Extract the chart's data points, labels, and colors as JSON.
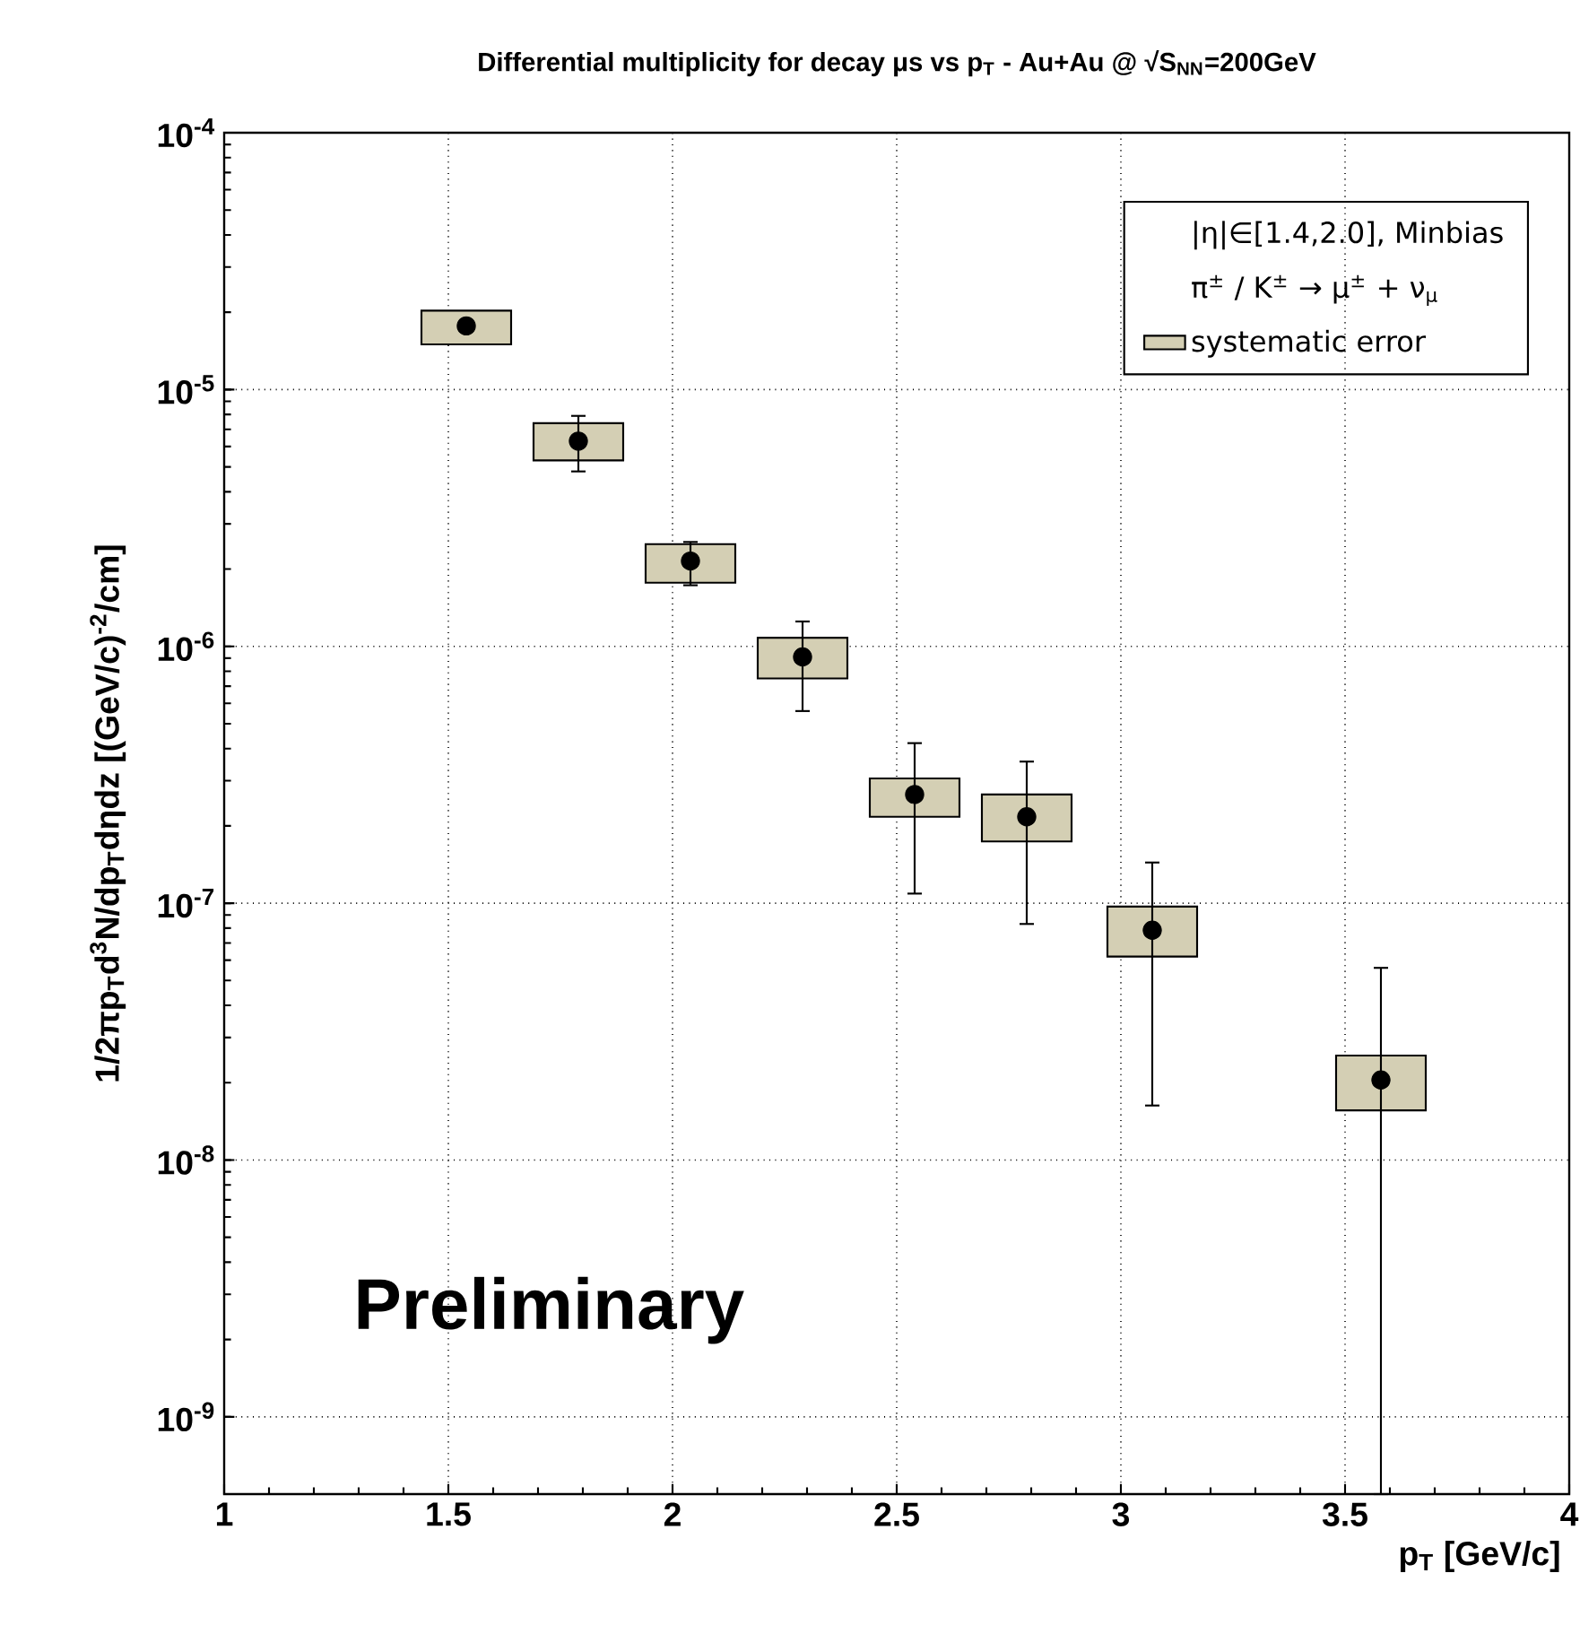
{
  "chart_data": {
    "type": "scatter",
    "title": "Differential multiplicity for decay μs vs p$_{T}$ - Au+Au @ √S$_{NN}$=200GeV",
    "xlabel": "p$_{T}$ [GeV/c]",
    "ylabel": "1/2πp$_{T}$d$^{3}$N/dp$_{T}$dηdz [(GeV/c)$^{-2}$/cm]",
    "log": "y",
    "xlim": [
      1,
      4
    ],
    "ylim": [
      5e-10,
      0.0001
    ],
    "xticks": [
      1,
      1.5,
      2,
      2.5,
      3,
      3.5,
      4
    ],
    "yticks": [
      {
        "value": 1e-09,
        "label": "10$^{-9}$"
      },
      {
        "value": 1e-08,
        "label": "10$^{-8}$"
      },
      {
        "value": 1e-07,
        "label": "10$^{-7}$"
      },
      {
        "value": 1e-06,
        "label": "10$^{-6}$"
      },
      {
        "value": 1e-05,
        "label": "10$^{-5}$"
      },
      {
        "value": 0.0001,
        "label": "10$^{-4}$"
      }
    ],
    "grid": true,
    "legend": "top right",
    "annotations": [
      "|η|∈[1.4,2.0], Minbias",
      "π$^{±}$ / K$^{±}$ → μ$^{±}$ + ν$_{μ}$",
      "Preliminary"
    ],
    "series": [
      {
        "name": "systematic error",
        "type": "bar",
        "color": "#d4cfb4",
        "x": [
          1.54,
          1.79,
          2.04,
          2.29,
          2.54,
          2.79,
          3.07,
          3.58
        ],
        "base": [
          1.5e-05,
          5.3e-06,
          1.77e-06,
          7.5e-07,
          2.17e-07,
          1.74e-07,
          6.2e-08,
          1.56e-08
        ],
        "values": [
          5.3e-06,
          2.1e-06,
          7.3e-07,
          3.3e-07,
          8.9e-08,
          9.1e-08,
          3.5e-08,
          9.9e-09
        ]
      },
      {
        "type": "scatter",
        "marker": "circle",
        "color": "#000000",
        "x": [
          1.54,
          1.79,
          2.04,
          2.29,
          2.54,
          2.79,
          3.07,
          3.58
        ],
        "values": [
          1.77e-05,
          6.3e-06,
          2.15e-06,
          9.1e-07,
          2.65e-07,
          2.17e-07,
          7.85e-08,
          2.05e-08
        ],
        "errors": [
          null,
          [
            4.8e-06,
            7.9e-06
          ],
          [
            1.73e-06,
            2.55e-06
          ],
          [
            5.6e-07,
            1.25e-06
          ],
          [
            1.09e-07,
            4.2e-07
          ],
          [
            8.3e-08,
            3.56e-07
          ],
          [
            1.63e-08,
            1.44e-07
          ],
          [
            5e-10,
            5.6e-08
          ]
        ]
      }
    ]
  }
}
